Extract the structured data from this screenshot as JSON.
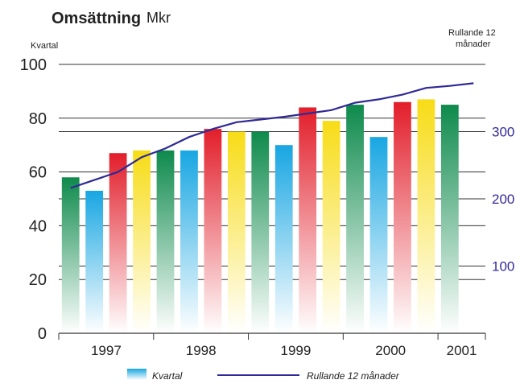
{
  "chart_data": {
    "type": "bar",
    "title": "Omsättning",
    "unit": "Mkr",
    "left_axis_label": "Kvartal",
    "right_axis_label_line1": "Rullande 12",
    "right_axis_label_line2": "månader",
    "y_left": {
      "min": 0,
      "max": 100,
      "ticks": [
        "0",
        "20",
        "40",
        "60",
        "80",
        "100"
      ]
    },
    "y_right": {
      "min": 0,
      "max": 400,
      "ticks": [
        "100",
        "200",
        "300"
      ]
    },
    "x_ticks": [
      "1997",
      "1998",
      "1999",
      "2000",
      "2001"
    ],
    "categories": [
      "1997 Q1",
      "1997 Q2",
      "1997 Q3",
      "1997 Q4",
      "1998 Q1",
      "1998 Q2",
      "1998 Q3",
      "1998 Q4",
      "1999 Q1",
      "1999 Q2",
      "1999 Q3",
      "1999 Q4",
      "2000 Q1",
      "2000 Q2",
      "2000 Q3",
      "2000 Q4",
      "2001 Q1",
      "2001 Q2"
    ],
    "series": [
      {
        "name": "Kvartal",
        "type": "bar",
        "values": [
          58,
          53,
          67,
          68,
          68,
          68,
          76,
          75,
          75,
          70,
          84,
          79,
          85,
          73,
          86,
          87,
          85,
          0
        ],
        "colors": [
          "green",
          "blue",
          "red",
          "yellow",
          "green",
          "blue",
          "red",
          "yellow",
          "green",
          "blue",
          "red",
          "yellow",
          "green",
          "blue",
          "red",
          "yellow",
          "green",
          "blue"
        ]
      },
      {
        "name": "Rullande 12 månader",
        "type": "line",
        "values": [
          216,
          228,
          240,
          262,
          275,
          292,
          304,
          314,
          318,
          322,
          327,
          332,
          343,
          348,
          355,
          365,
          368,
          372
        ]
      }
    ],
    "legend": [
      "Kvartal",
      "Rullande 12 månader"
    ],
    "legend_position": "bottom",
    "colors": {
      "green": "#0e8a4c",
      "blue": "#18a6e2",
      "red": "#e21e2a",
      "yellow": "#f7dc16",
      "line": "#2e2a96",
      "grid": "#333333"
    }
  }
}
